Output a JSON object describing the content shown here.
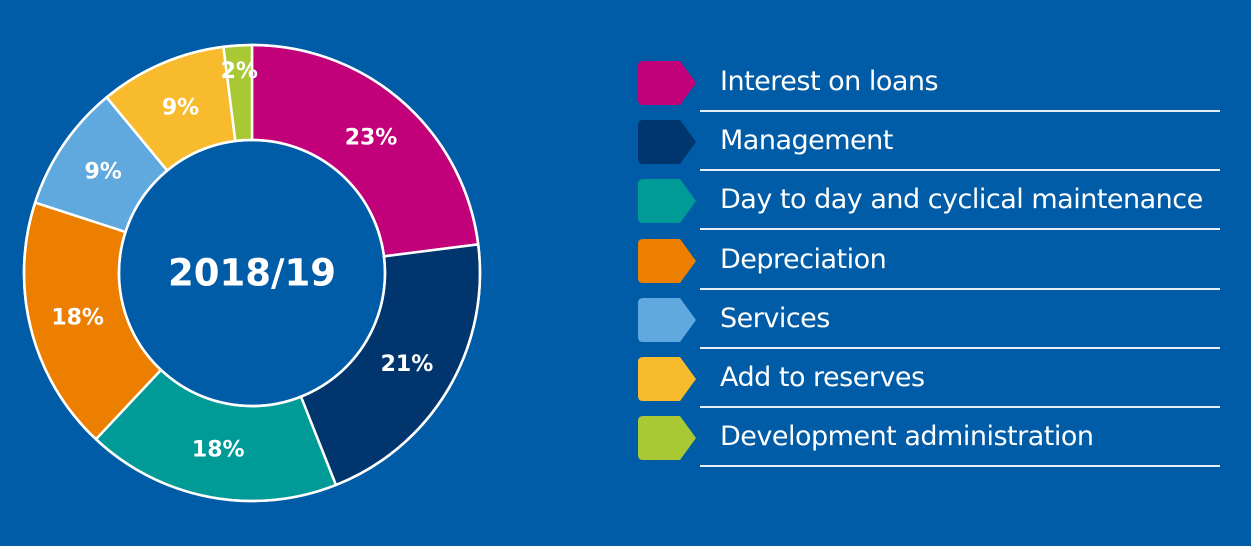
{
  "chart_data": {
    "type": "pie",
    "variant": "donut",
    "center_label": "2018/19",
    "categories": [
      "Interest on loans",
      "Management",
      "Day to day and cyclical maintenance",
      "Depreciation",
      "Services",
      "Add to reserves",
      "Development administration"
    ],
    "values": [
      23,
      21,
      18,
      18,
      9,
      9,
      2
    ],
    "value_labels": [
      "23%",
      "21%",
      "18%",
      "18%",
      "9%",
      "9%",
      "2%"
    ],
    "colors": [
      "#c2007a",
      "#00356e",
      "#009b97",
      "#ec7f00",
      "#5fa9de",
      "#f8bb2d",
      "#a9c934"
    ],
    "legend_position": "right"
  }
}
